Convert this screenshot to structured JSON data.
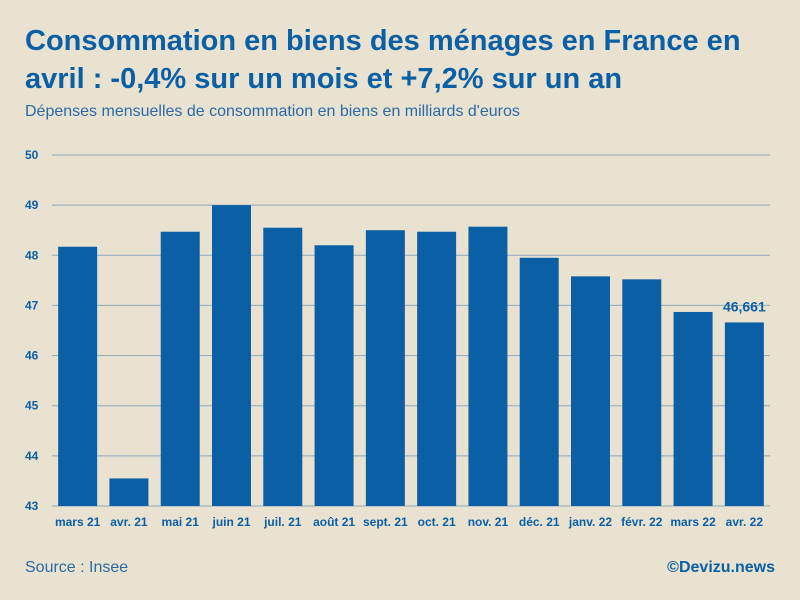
{
  "header": {
    "title": "Consommation en biens des ménages en France en avril : -0,4% sur un mois et +7,2% sur un an",
    "subtitle": "Dépenses mensuelles de consommation en biens en milliards d'euros"
  },
  "footer": {
    "source": "Source : Insee",
    "credit": "©Devizu.news"
  },
  "colors": {
    "bar": "#0b5fa5",
    "text": "#0b5fa5",
    "grid": "#8fa9bd",
    "background": "#e9e2d0"
  },
  "chart_data": {
    "type": "bar",
    "title": "Consommation en biens des ménages en France en avril : -0,4% sur un mois et +7,2% sur un an",
    "subtitle": "Dépenses mensuelles de consommation en biens en milliards d'euros",
    "xlabel": "",
    "ylabel": "",
    "categories": [
      "mars 21",
      "avr. 21",
      "mai 21",
      "juin 21",
      "juil. 21",
      "août 21",
      "sept. 21",
      "oct. 21",
      "nov. 21",
      "déc. 21",
      "janv. 22",
      "févr. 22",
      "mars 22",
      "avr. 22"
    ],
    "values": [
      48.17,
      43.55,
      48.47,
      49.0,
      48.55,
      48.2,
      48.5,
      48.47,
      48.57,
      47.95,
      47.58,
      47.52,
      46.87,
      46.661
    ],
    "ylim": [
      43,
      50
    ],
    "yticks": [
      43,
      44,
      45,
      46,
      47,
      48,
      49,
      50
    ],
    "grid": true,
    "annotation": {
      "category": "avr. 22",
      "text": "46,661"
    }
  }
}
